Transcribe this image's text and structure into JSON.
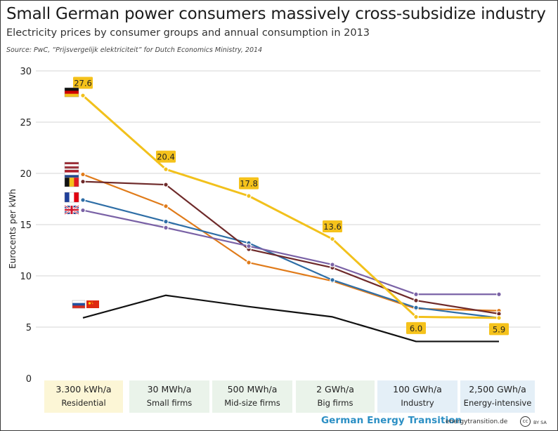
{
  "header": {
    "title": "Small German power consumers massively cross-subsidize industry",
    "subtitle": "Electricity prices by consumer groups and annual consumption in 2013",
    "source": "Source: PwC, “Prijsvergelijk elektriciteit” for Dutch Economics Ministry, 2014"
  },
  "chart_data": {
    "type": "line",
    "title": "Electricity prices by consumer groups and annual consumption in 2013",
    "ylabel": "Eurocents per kWh",
    "xlabel": "",
    "ylim": [
      0,
      30
    ],
    "yticks": [
      "0",
      "5",
      "10",
      "15",
      "20",
      "25",
      "30"
    ],
    "grid": true,
    "categories": [
      {
        "volume": "3.300 kWh/a",
        "desc": "Residential"
      },
      {
        "volume": "30 MWh/a",
        "desc": "Small firms"
      },
      {
        "volume": "500 MWh/a",
        "desc": "Mid-size firms"
      },
      {
        "volume": "2 GWh/a",
        "desc": "Big firms"
      },
      {
        "volume": "100 GWh/a",
        "desc": "Industry"
      },
      {
        "volume": "2,500 GWh/a",
        "desc": "Energy-intensive"
      }
    ],
    "series": [
      {
        "name": "Russia / China",
        "color": "#111111",
        "values": [
          5.9,
          8.1,
          7.0,
          6.0,
          3.6,
          3.6
        ],
        "labels": []
      },
      {
        "name": "Netherlands",
        "color": "#e07b1a",
        "values": [
          19.9,
          16.8,
          11.3,
          9.5,
          6.8,
          6.6
        ],
        "labels": []
      },
      {
        "name": "France",
        "color": "#2e6ea6",
        "values": [
          17.4,
          15.3,
          13.2,
          9.6,
          6.9,
          5.9
        ],
        "labels": []
      },
      {
        "name": "Belgium",
        "color": "#6e2a2a",
        "values": [
          19.2,
          18.9,
          12.6,
          10.8,
          7.6,
          6.3
        ],
        "labels": []
      },
      {
        "name": "United Kingdom",
        "color": "#7a62a6",
        "values": [
          16.4,
          14.7,
          12.9,
          11.1,
          8.2,
          8.2
        ],
        "labels": []
      },
      {
        "name": "Germany",
        "color": "#f2c11c",
        "values": [
          27.6,
          20.4,
          17.8,
          13.6,
          6.0,
          5.9
        ],
        "labels": [
          "27.6",
          "20.4",
          "17.8",
          "13.6",
          "6.0",
          "5.9"
        ]
      }
    ],
    "legend": "flags beside the first data point"
  },
  "footer": {
    "brand": "German Energy Transition",
    "site": "energytransition.de",
    "cc": "cc",
    "license": "BY SA"
  },
  "colors": {
    "grid": "#d6d6d6",
    "box_yellow": "#fcf6d6",
    "box_green": "#eaf3ea",
    "box_blue": "#e4eff7",
    "label_bg": "#f5c21b",
    "brand": "#2b8fc4"
  },
  "flags": [
    "germany-flag",
    "latvia-flag",
    "netherlands-flag",
    "belgium-flag",
    "france-flag",
    "uk-flag",
    "russia-flag",
    "china-flag"
  ]
}
